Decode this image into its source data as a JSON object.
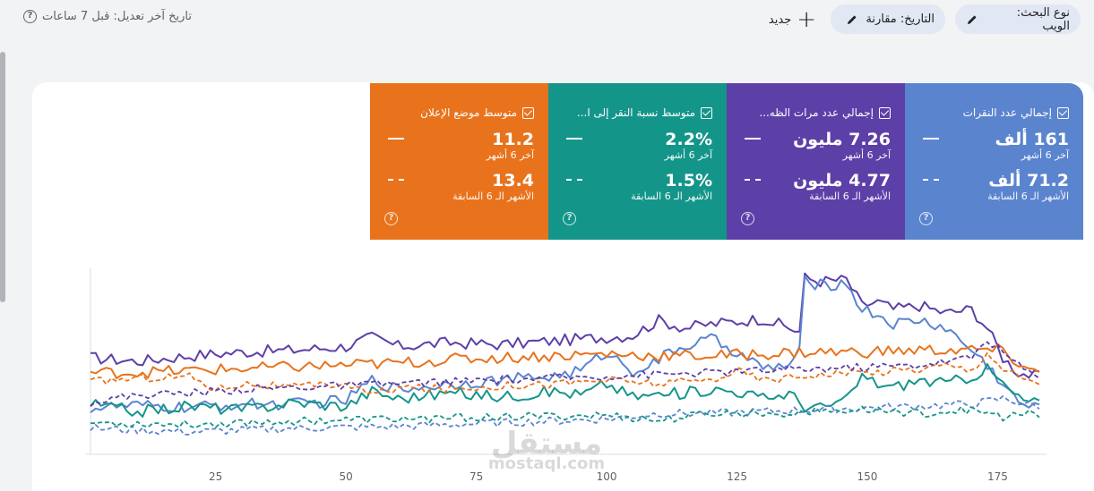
{
  "filter_bar": {
    "search_type_label": "نوع البحث: الويب",
    "date_label": "التاريخ: مقارنة",
    "new_label": "جديد",
    "last_edit": "تاريخ آخر تعديل: قبل 7 ساعات"
  },
  "colors": {
    "clicks": "#5b84cf",
    "impressions": "#5d3fa8",
    "ctr": "#14958a",
    "position": "#e8731c"
  },
  "tiles": [
    {
      "key": "clicks",
      "title": "إجمالي عدد النقرات",
      "current_value": "161 ألف",
      "current_label": "آخر 6 أشهر",
      "previous_value": "71.2 ألف",
      "previous_label": "الأشهر الـ 6 السابقة",
      "color": "#5b84cf"
    },
    {
      "key": "impressions",
      "title": "إجمالي عدد مرات الظه...",
      "current_value": "7.26 مليون",
      "current_label": "آخر 6 أشهر",
      "previous_value": "4.77 مليون",
      "previous_label": "الأشهر الـ 6 السابقة",
      "color": "#5d3fa8"
    },
    {
      "key": "ctr",
      "title": "متوسط نسبة النقر إلى ا...",
      "current_value": "2.2%",
      "current_label": "آخر 6 أشهر",
      "previous_value": "1.5%",
      "previous_label": "الأشهر الـ 6 السابقة",
      "color": "#14958a"
    },
    {
      "key": "position",
      "title": "متوسط موضع الإعلان",
      "current_value": "11.2",
      "current_label": "آخر 6 أشهر",
      "previous_value": "13.4",
      "previous_label": "الأشهر الـ 6 السابقة",
      "color": "#e8731c"
    }
  ],
  "chart_data": {
    "type": "line",
    "x_ticks": [
      25,
      50,
      75,
      100,
      125,
      150,
      175
    ],
    "xlim": [
      1,
      183
    ],
    "ylim": [
      0,
      100
    ],
    "grid": false,
    "series": [
      {
        "color": "#5d3fa8",
        "dash": false,
        "anchors": [
          [
            1,
            52
          ],
          [
            10,
            50
          ],
          [
            20,
            53
          ],
          [
            30,
            55
          ],
          [
            40,
            56
          ],
          [
            50,
            58
          ],
          [
            55,
            63
          ],
          [
            60,
            58
          ],
          [
            70,
            60
          ],
          [
            80,
            59
          ],
          [
            90,
            61
          ],
          [
            95,
            62
          ],
          [
            100,
            63
          ],
          [
            105,
            64
          ],
          [
            110,
            72
          ],
          [
            115,
            68
          ],
          [
            120,
            70
          ],
          [
            130,
            73
          ],
          [
            135,
            68
          ],
          [
            137,
            66
          ],
          [
            138,
            95
          ],
          [
            141,
            93
          ],
          [
            146,
            94
          ],
          [
            149,
            80
          ],
          [
            152,
            82
          ],
          [
            155,
            78
          ],
          [
            160,
            80
          ],
          [
            165,
            76
          ],
          [
            170,
            78
          ],
          [
            173,
            68
          ],
          [
            176,
            52
          ],
          [
            179,
            44
          ],
          [
            182,
            42
          ]
        ]
      },
      {
        "color": "#5b84cf",
        "dash": false,
        "anchors": [
          [
            1,
            25
          ],
          [
            10,
            26
          ],
          [
            20,
            25
          ],
          [
            30,
            27
          ],
          [
            40,
            27
          ],
          [
            50,
            29
          ],
          [
            55,
            40
          ],
          [
            60,
            35
          ],
          [
            70,
            38
          ],
          [
            80,
            40
          ],
          [
            90,
            42
          ],
          [
            95,
            45
          ],
          [
            100,
            55
          ],
          [
            105,
            45
          ],
          [
            110,
            50
          ],
          [
            112,
            55
          ],
          [
            115,
            58
          ],
          [
            120,
            62
          ],
          [
            125,
            55
          ],
          [
            130,
            46
          ],
          [
            135,
            48
          ],
          [
            137,
            55
          ],
          [
            138,
            93
          ],
          [
            141,
            91
          ],
          [
            146,
            92
          ],
          [
            149,
            78
          ],
          [
            152,
            75
          ],
          [
            155,
            70
          ],
          [
            160,
            72
          ],
          [
            165,
            68
          ],
          [
            170,
            56
          ],
          [
            173,
            48
          ],
          [
            176,
            38
          ],
          [
            179,
            28
          ],
          [
            182,
            25
          ]
        ]
      },
      {
        "color": "#14958a",
        "dash": false,
        "anchors": [
          [
            1,
            27
          ],
          [
            10,
            23
          ],
          [
            20,
            26
          ],
          [
            30,
            24
          ],
          [
            40,
            28
          ],
          [
            50,
            26
          ],
          [
            55,
            34
          ],
          [
            60,
            30
          ],
          [
            70,
            33
          ],
          [
            80,
            31
          ],
          [
            90,
            34
          ],
          [
            95,
            32
          ],
          [
            100,
            38
          ],
          [
            105,
            31
          ],
          [
            110,
            32
          ],
          [
            115,
            33
          ],
          [
            120,
            35
          ],
          [
            125,
            34
          ],
          [
            130,
            30
          ],
          [
            135,
            33
          ],
          [
            138,
            26
          ],
          [
            141,
            25
          ],
          [
            146,
            29
          ],
          [
            149,
            42
          ],
          [
            152,
            38
          ],
          [
            155,
            36
          ],
          [
            160,
            40
          ],
          [
            165,
            38
          ],
          [
            170,
            42
          ],
          [
            173,
            46
          ],
          [
            176,
            38
          ],
          [
            179,
            30
          ],
          [
            182,
            28
          ]
        ]
      },
      {
        "color": "#e8731c",
        "dash": false,
        "anchors": [
          [
            1,
            44
          ],
          [
            10,
            44
          ],
          [
            20,
            45
          ],
          [
            30,
            46
          ],
          [
            40,
            47
          ],
          [
            50,
            48
          ],
          [
            60,
            49
          ],
          [
            70,
            51
          ],
          [
            80,
            52
          ],
          [
            90,
            53
          ],
          [
            100,
            54
          ],
          [
            110,
            53
          ],
          [
            120,
            53
          ],
          [
            130,
            54
          ],
          [
            140,
            55
          ],
          [
            150,
            55
          ],
          [
            160,
            56
          ],
          [
            170,
            56
          ],
          [
            175,
            56
          ],
          [
            178,
            51
          ],
          [
            182,
            44
          ]
        ]
      },
      {
        "color": "#e8731c",
        "dash": true,
        "anchors": [
          [
            1,
            39
          ],
          [
            10,
            41
          ],
          [
            20,
            42
          ],
          [
            25,
            35
          ],
          [
            30,
            38
          ],
          [
            40,
            36
          ],
          [
            50,
            38
          ],
          [
            55,
            32
          ],
          [
            60,
            36
          ],
          [
            70,
            35
          ],
          [
            80,
            37
          ],
          [
            90,
            38
          ],
          [
            100,
            40
          ],
          [
            110,
            38
          ],
          [
            120,
            40
          ],
          [
            125,
            45
          ],
          [
            130,
            40
          ],
          [
            140,
            43
          ],
          [
            150,
            44
          ],
          [
            160,
            46
          ],
          [
            165,
            48
          ],
          [
            170,
            45
          ],
          [
            173,
            55
          ],
          [
            176,
            46
          ],
          [
            179,
            42
          ],
          [
            182,
            38
          ]
        ]
      },
      {
        "color": "#5d3fa8",
        "dash": true,
        "anchors": [
          [
            1,
            28
          ],
          [
            10,
            32
          ],
          [
            20,
            33
          ],
          [
            30,
            35
          ],
          [
            40,
            36
          ],
          [
            50,
            37
          ],
          [
            60,
            38
          ],
          [
            70,
            39
          ],
          [
            80,
            40
          ],
          [
            90,
            41
          ],
          [
            100,
            42
          ],
          [
            110,
            43
          ],
          [
            120,
            44
          ],
          [
            130,
            45
          ],
          [
            140,
            46
          ],
          [
            150,
            47
          ],
          [
            160,
            48
          ],
          [
            170,
            52
          ],
          [
            173,
            62
          ],
          [
            176,
            55
          ],
          [
            179,
            48
          ],
          [
            182,
            42
          ]
        ]
      },
      {
        "color": "#5b84cf",
        "dash": true,
        "anchors": [
          [
            1,
            14
          ],
          [
            20,
            12
          ],
          [
            40,
            14
          ],
          [
            60,
            15
          ],
          [
            80,
            17
          ],
          [
            100,
            19
          ],
          [
            110,
            22
          ],
          [
            120,
            22
          ],
          [
            130,
            23
          ],
          [
            140,
            24
          ],
          [
            150,
            25
          ],
          [
            160,
            26
          ],
          [
            170,
            27
          ],
          [
            176,
            30
          ],
          [
            182,
            26
          ]
        ]
      },
      {
        "color": "#14958a",
        "dash": true,
        "anchors": [
          [
            1,
            17
          ],
          [
            20,
            16
          ],
          [
            40,
            18
          ],
          [
            60,
            19
          ],
          [
            80,
            20
          ],
          [
            100,
            21
          ],
          [
            110,
            18
          ],
          [
            120,
            22
          ],
          [
            130,
            22
          ],
          [
            140,
            23
          ],
          [
            150,
            24
          ],
          [
            160,
            22
          ],
          [
            170,
            24
          ],
          [
            176,
            20
          ],
          [
            182,
            22
          ]
        ]
      }
    ]
  },
  "watermark": {
    "arabic": "مستقل",
    "latin": "mostaql.com"
  }
}
